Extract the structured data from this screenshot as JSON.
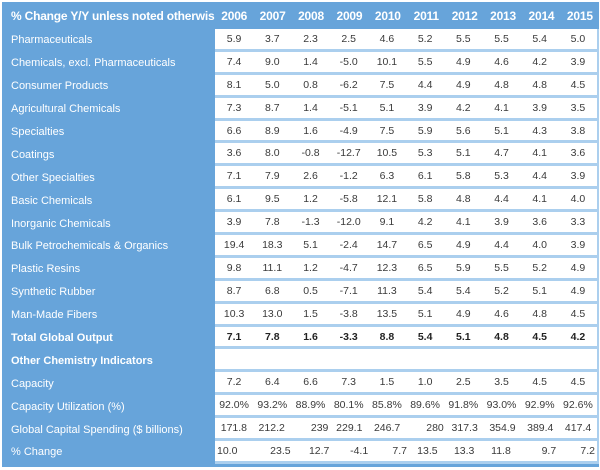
{
  "colors": {
    "blue": "#67A4DA",
    "light_blue": "#ABCFEE",
    "text_dark": "#3A3A3A",
    "text_bold": "#232323",
    "header_text": "#FFFFFF"
  },
  "chart_data": {
    "type": "table",
    "title": "% Change Y/Y unless noted otherwise",
    "columns": [
      "2006",
      "2007",
      "2008",
      "2009",
      "2010",
      "2011",
      "2012",
      "2013",
      "2014",
      "2015"
    ],
    "rows": [
      {
        "label": "Pharmaceuticals",
        "values": [
          "5.9",
          "3.7",
          "2.3",
          "2.5",
          "4.6",
          "5.2",
          "5.5",
          "5.5",
          "5.4",
          "5.0"
        ]
      },
      {
        "label": "Chemicals, excl. Pharmaceuticals",
        "values": [
          "7.4",
          "9.0",
          "1.4",
          "-5.0",
          "10.1",
          "5.5",
          "4.9",
          "4.6",
          "4.2",
          "3.9"
        ]
      },
      {
        "label": "Consumer Products",
        "values": [
          "8.1",
          "5.0",
          "0.8",
          "-6.2",
          "7.5",
          "4.4",
          "4.9",
          "4.8",
          "4.8",
          "4.5"
        ]
      },
      {
        "label": "Agricultural Chemicals",
        "values": [
          "7.3",
          "8.7",
          "1.4",
          "-5.1",
          "5.1",
          "3.9",
          "4.2",
          "4.1",
          "3.9",
          "3.5"
        ]
      },
      {
        "label": "Specialties",
        "values": [
          "6.6",
          "8.9",
          "1.6",
          "-4.9",
          "7.5",
          "5.9",
          "5.6",
          "5.1",
          "4.3",
          "3.8"
        ]
      },
      {
        "label": "Coatings",
        "values": [
          "3.6",
          "8.0",
          "-0.8",
          "-12.7",
          "10.5",
          "5.3",
          "5.1",
          "4.7",
          "4.1",
          "3.6"
        ]
      },
      {
        "label": "Other Specialties",
        "values": [
          "7.1",
          "7.9",
          "2.6",
          "-1.2",
          "6.3",
          "6.1",
          "5.8",
          "5.3",
          "4.4",
          "3.9"
        ]
      },
      {
        "label": "Basic Chemicals",
        "values": [
          "6.1",
          "9.5",
          "1.2",
          "-5.8",
          "12.1",
          "5.8",
          "4.8",
          "4.4",
          "4.1",
          "4.0"
        ]
      },
      {
        "label": "Inorganic Chemicals",
        "values": [
          "3.9",
          "7.8",
          "-1.3",
          "-12.0",
          "9.1",
          "4.2",
          "4.1",
          "3.9",
          "3.6",
          "3.3"
        ]
      },
      {
        "label": "Bulk Petrochemicals & Organics",
        "values": [
          "19.4",
          "18.3",
          "5.1",
          "-2.4",
          "14.7",
          "6.5",
          "4.9",
          "4.4",
          "4.0",
          "3.9"
        ]
      },
      {
        "label": "Plastic Resins",
        "values": [
          "9.8",
          "11.1",
          "1.2",
          "-4.7",
          "12.3",
          "6.5",
          "5.9",
          "5.5",
          "5.2",
          "4.9"
        ]
      },
      {
        "label": "Synthetic Rubber",
        "values": [
          "8.7",
          "6.8",
          "0.5",
          "-7.1",
          "11.3",
          "5.4",
          "5.4",
          "5.2",
          "5.1",
          "4.9"
        ]
      },
      {
        "label": "Man-Made Fibers",
        "values": [
          "10.3",
          "13.0",
          "1.5",
          "-3.8",
          "13.5",
          "5.1",
          "4.9",
          "4.6",
          "4.8",
          "4.5"
        ]
      },
      {
        "label": "Total Global Output",
        "bold": true,
        "values": [
          "7.1",
          "7.8",
          "1.6",
          "-3.3",
          "8.8",
          "5.4",
          "5.1",
          "4.8",
          "4.5",
          "4.2"
        ]
      },
      {
        "label": "Other Chemistry Indicators",
        "bold": true,
        "values": [
          "",
          "",
          "",
          "",
          "",
          "",
          "",
          "",
          "",
          ""
        ]
      },
      {
        "label": "Capacity",
        "values": [
          "7.2",
          "6.4",
          "6.6",
          "7.3",
          "1.5",
          "1.0",
          "2.5",
          "3.5",
          "4.5",
          "4.5"
        ]
      },
      {
        "label": "Capacity Utilization (%)",
        "values": [
          "92.0%",
          "93.2%",
          "88.9%",
          "80.1%",
          "85.8%",
          "89.6%",
          "91.8%",
          "93.0%",
          "92.9%",
          "92.6%"
        ]
      },
      {
        "label": "Global Capital Spending ($ billions)",
        "values": [
          "171.8",
          "212.2",
          "239",
          "229.1",
          "246.7",
          "280",
          "317.3",
          "354.9",
          "389.4",
          "417.4"
        ],
        "align": [
          "",
          "",
          "r",
          "",
          "",
          "r",
          "",
          "",
          "",
          ""
        ]
      },
      {
        "label": "% Change",
        "values": [
          "10.0",
          "23.5",
          "12.7",
          "-4.1",
          "7.7",
          "13.5",
          "13.3",
          "11.8",
          "9.7",
          "7.2"
        ],
        "align": [
          "l",
          "r",
          "r",
          "r",
          "r",
          "",
          "",
          "",
          "r",
          "r"
        ]
      }
    ]
  }
}
